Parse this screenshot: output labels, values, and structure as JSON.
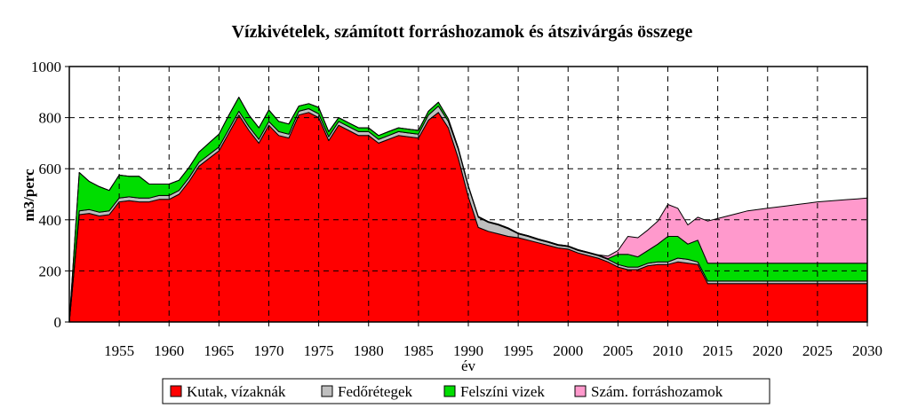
{
  "chart_data": {
    "type": "area",
    "stacked": true,
    "title": "Vízkivételek, számított forráshozamok és átszivárgás összege",
    "xlabel": "év",
    "ylabel": "m3/perc",
    "xlim": [
      1950,
      2030
    ],
    "ylim": [
      0,
      1000
    ],
    "x_ticks": [
      "1955",
      "1960",
      "1965",
      "1970",
      "1975",
      "1980",
      "1985",
      "1990",
      "1995",
      "2000",
      "2005",
      "2010",
      "2015",
      "2020",
      "2025",
      "2030"
    ],
    "y_ticks": [
      "0",
      "200",
      "400",
      "600",
      "800",
      "1000"
    ],
    "grid": true,
    "legend_position": "bottom",
    "x": [
      1950,
      1951,
      1952,
      1953,
      1954,
      1955,
      1956,
      1957,
      1958,
      1959,
      1960,
      1961,
      1962,
      1963,
      1964,
      1965,
      1966,
      1967,
      1968,
      1969,
      1970,
      1971,
      1972,
      1973,
      1974,
      1975,
      1976,
      1977,
      1978,
      1979,
      1980,
      1981,
      1982,
      1983,
      1984,
      1985,
      1986,
      1987,
      1988,
      1989,
      1990,
      1991,
      1992,
      1993,
      1994,
      1995,
      1996,
      1997,
      1998,
      1999,
      2000,
      2001,
      2002,
      2003,
      2004,
      2005,
      2006,
      2007,
      2008,
      2009,
      2010,
      2011,
      2012,
      2013,
      2014,
      2015,
      2016,
      2017,
      2018,
      2019,
      2020,
      2021,
      2022,
      2023,
      2024,
      2025,
      2026,
      2027,
      2028,
      2029,
      2030
    ],
    "series": [
      {
        "name": "Kutak, vízaknák",
        "color": "#ff0000",
        "values": [
          0,
          420,
          425,
          415,
          420,
          470,
          475,
          470,
          470,
          480,
          480,
          500,
          550,
          610,
          640,
          670,
          740,
          810,
          750,
          700,
          770,
          730,
          720,
          810,
          820,
          800,
          710,
          770,
          750,
          730,
          730,
          700,
          715,
          730,
          725,
          720,
          790,
          820,
          760,
          640,
          490,
          370,
          355,
          345,
          335,
          330,
          320,
          310,
          300,
          290,
          285,
          270,
          260,
          250,
          235,
          215,
          205,
          205,
          220,
          225,
          225,
          235,
          230,
          225,
          150,
          150,
          150,
          150,
          150,
          150,
          150,
          150,
          150,
          150,
          150,
          150,
          150,
          150,
          150,
          150,
          150
        ]
      },
      {
        "name": "Fedőrétegek",
        "color": "#bfbfbf",
        "values": [
          0,
          15,
          15,
          15,
          15,
          15,
          15,
          15,
          15,
          15,
          15,
          15,
          15,
          15,
          15,
          15,
          15,
          15,
          15,
          15,
          15,
          15,
          15,
          15,
          15,
          15,
          15,
          15,
          15,
          15,
          15,
          15,
          15,
          15,
          15,
          15,
          20,
          25,
          25,
          35,
          40,
          40,
          35,
          35,
          30,
          15,
          15,
          12,
          12,
          10,
          10,
          10,
          10,
          10,
          10,
          10,
          10,
          10,
          10,
          10,
          10,
          15,
          15,
          10,
          10,
          10,
          10,
          10,
          10,
          10,
          10,
          10,
          10,
          10,
          10,
          10,
          10,
          10,
          10,
          10,
          10
        ]
      },
      {
        "name": "Felszíni vizek",
        "color": "#00dd00",
        "values": [
          0,
          150,
          110,
          100,
          80,
          90,
          80,
          85,
          55,
          45,
          45,
          40,
          40,
          40,
          45,
          50,
          55,
          55,
          45,
          45,
          45,
          40,
          40,
          20,
          20,
          25,
          20,
          15,
          15,
          15,
          15,
          15,
          15,
          15,
          15,
          15,
          15,
          15,
          10,
          5,
          3,
          3,
          3,
          3,
          3,
          3,
          3,
          3,
          3,
          3,
          3,
          3,
          3,
          3,
          3,
          40,
          50,
          40,
          50,
          70,
          100,
          85,
          60,
          85,
          70,
          70,
          70,
          70,
          70,
          70,
          70,
          70,
          70,
          70,
          70,
          70,
          70,
          70,
          70,
          70,
          70
        ]
      },
      {
        "name": "Szám. forráshozamok",
        "color": "#ff99cc",
        "values": [
          0,
          0,
          0,
          0,
          0,
          0,
          0,
          0,
          0,
          0,
          0,
          0,
          0,
          0,
          0,
          0,
          0,
          0,
          0,
          0,
          0,
          0,
          0,
          0,
          0,
          0,
          0,
          0,
          0,
          0,
          0,
          0,
          0,
          0,
          0,
          0,
          0,
          0,
          0,
          0,
          0,
          0,
          0,
          0,
          0,
          0,
          0,
          0,
          0,
          0,
          0,
          0,
          0,
          0,
          10,
          15,
          70,
          75,
          80,
          90,
          125,
          110,
          75,
          90,
          165,
          175,
          185,
          195,
          205,
          210,
          215,
          220,
          225,
          230,
          235,
          240,
          243,
          246,
          249,
          252,
          255
        ]
      }
    ]
  }
}
